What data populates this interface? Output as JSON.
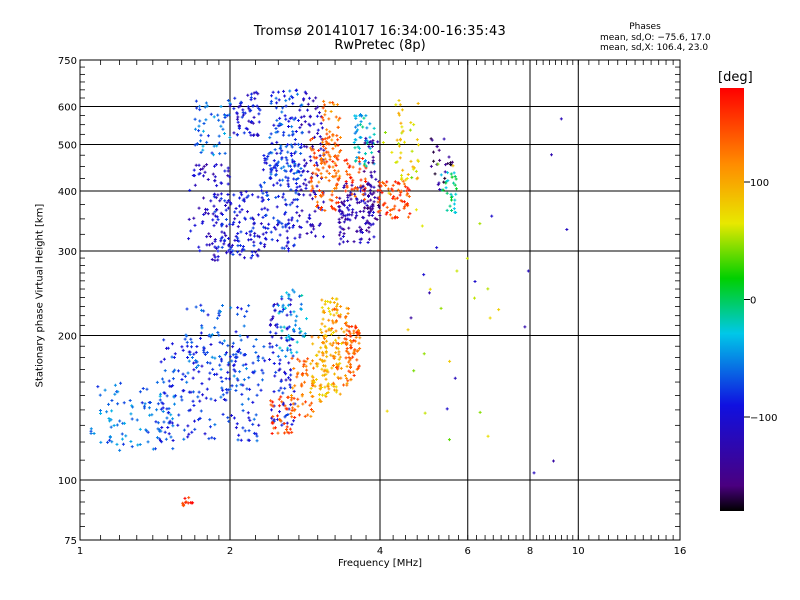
{
  "chart_data": {
    "type": "scatter",
    "title": "Tromsø 20141017 16:34:00-16:35:43",
    "subtitle": "RwPretec (8p)",
    "xlabel": "Frequency [MHz]",
    "ylabel": "Stationary phase Virtual Height [km]",
    "x_scale": "log",
    "y_scale": "log",
    "xlim": [
      1,
      16
    ],
    "ylim": [
      75,
      750
    ],
    "x_ticks": [
      "1",
      "2",
      "4",
      "6",
      "8",
      "10",
      "16"
    ],
    "y_ticks": [
      "75",
      "100",
      "200",
      "300",
      "400",
      "500",
      "600",
      "750"
    ],
    "grid": true,
    "phase_header": "Phases",
    "phase_stats": [
      "mean, sd,O: −75.6, 17.0",
      "mean, sd,X: 106.4, 23.0"
    ],
    "colorbar": {
      "unit": "[deg]",
      "range": [
        -180,
        180
      ],
      "ticks": [
        "100",
        "0",
        "−100"
      ],
      "tick_values": [
        100,
        0,
        -100
      ]
    },
    "clusters": [
      {
        "x": [
          1.05,
          1.55
        ],
        "y": [
          115,
          160
        ],
        "phase": -60,
        "n": 100
      },
      {
        "x": [
          1.45,
          2.35
        ],
        "y": [
          120,
          200
        ],
        "phase": -80,
        "n": 200
      },
      {
        "x": [
          1.6,
          2.2
        ],
        "y": [
          150,
          235
        ],
        "phase": -70,
        "n": 80
      },
      {
        "x": [
          2.4,
          2.7
        ],
        "y": [
          130,
          240
        ],
        "phase": -95,
        "n": 90
      },
      {
        "x": [
          2.5,
          2.85
        ],
        "y": [
          180,
          250
        ],
        "phase": -40,
        "n": 50
      },
      {
        "x": [
          2.4,
          2.7
        ],
        "y": [
          125,
          150
        ],
        "phase": 150,
        "n": 40
      },
      {
        "x": [
          2.65,
          2.95
        ],
        "y": [
          135,
          180
        ],
        "phase": 130,
        "n": 50
      },
      {
        "x": [
          2.9,
          3.15
        ],
        "y": [
          145,
          210
        ],
        "phase": 100,
        "n": 60
      },
      {
        "x": [
          3.05,
          3.35
        ],
        "y": [
          150,
          240
        ],
        "phase": 90,
        "n": 80
      },
      {
        "x": [
          3.2,
          3.5
        ],
        "y": [
          155,
          230
        ],
        "phase": 120,
        "n": 60
      },
      {
        "x": [
          3.4,
          3.65
        ],
        "y": [
          165,
          210
        ],
        "phase": 140,
        "n": 60
      },
      {
        "x": [
          1.65,
          2.0
        ],
        "y": [
          285,
          460
        ],
        "phase": -110,
        "n": 80
      },
      {
        "x": [
          1.85,
          2.35
        ],
        "y": [
          290,
          400
        ],
        "phase": -95,
        "n": 120
      },
      {
        "x": [
          2.3,
          2.75
        ],
        "y": [
          300,
          480
        ],
        "phase": -90,
        "n": 120
      },
      {
        "x": [
          2.4,
          2.8
        ],
        "y": [
          420,
          650
        ],
        "phase": -75,
        "n": 120
      },
      {
        "x": [
          2.0,
          2.3
        ],
        "y": [
          520,
          650
        ],
        "phase": -100,
        "n": 60
      },
      {
        "x": [
          1.7,
          2.0
        ],
        "y": [
          470,
          620
        ],
        "phase": -60,
        "n": 50
      },
      {
        "x": [
          2.75,
          3.1
        ],
        "y": [
          320,
          650
        ],
        "phase": -115,
        "n": 100
      },
      {
        "x": [
          2.9,
          3.3
        ],
        "y": [
          360,
          520
        ],
        "phase": 140,
        "n": 80
      },
      {
        "x": [
          3.05,
          3.35
        ],
        "y": [
          420,
          620
        ],
        "phase": 125,
        "n": 60
      },
      {
        "x": [
          3.3,
          3.9
        ],
        "y": [
          310,
          420
        ],
        "phase": -125,
        "n": 120
      },
      {
        "x": [
          3.4,
          3.75
        ],
        "y": [
          380,
          470
        ],
        "phase": 150,
        "n": 40
      },
      {
        "x": [
          3.55,
          3.9
        ],
        "y": [
          450,
          580
        ],
        "phase": -30,
        "n": 50
      },
      {
        "x": [
          3.7,
          4.0
        ],
        "y": [
          340,
          520
        ],
        "phase": -140,
        "n": 50
      },
      {
        "x": [
          3.95,
          4.6
        ],
        "y": [
          350,
          420
        ],
        "phase": 150,
        "n": 70
      },
      {
        "x": [
          4.3,
          4.8
        ],
        "y": [
          420,
          620
        ],
        "phase": 80,
        "n": 40
      },
      {
        "x": [
          5.3,
          5.7
        ],
        "y": [
          360,
          440
        ],
        "phase": -10,
        "n": 30
      },
      {
        "x": [
          5.0,
          5.6
        ],
        "y": [
          400,
          520
        ],
        "phase": -150,
        "n": 25
      },
      {
        "x": [
          1.6,
          1.7
        ],
        "y": [
          88,
          93
        ],
        "phase": 160,
        "n": 12
      },
      {
        "x": [
          4.0,
          7.0
        ],
        "y": [
          120,
          600
        ],
        "phase": 60,
        "n": 30
      },
      {
        "x": [
          4.0,
          10.0
        ],
        "y": [
          90,
          600
        ],
        "phase": -120,
        "n": 15
      }
    ]
  }
}
